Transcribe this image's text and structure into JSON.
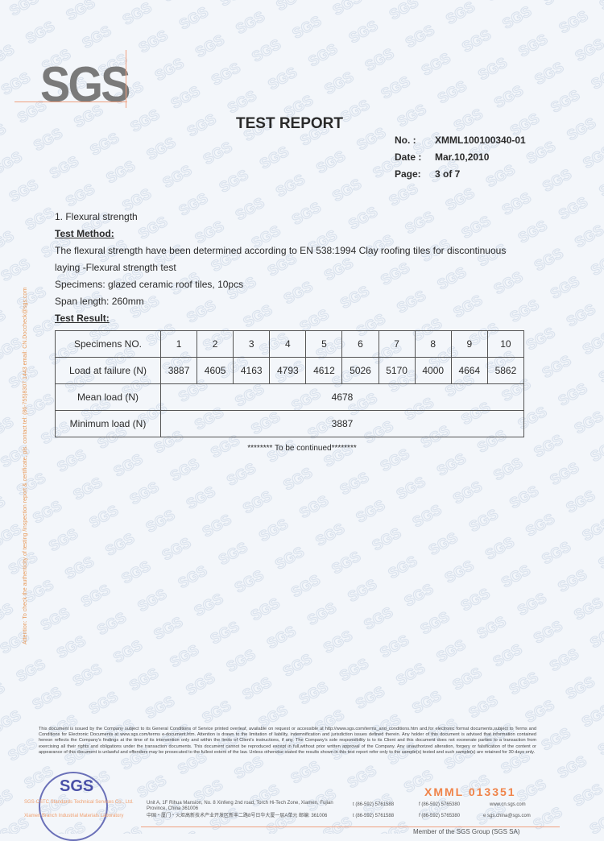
{
  "watermark": "SGS",
  "logo": "SGS",
  "header": {
    "title": "TEST REPORT",
    "no_label": "No.  :",
    "no": "XMML100100340-01",
    "date_label": "Date :",
    "date": "Mar.10,2010",
    "page_label": "Page:",
    "page": "3 of 7"
  },
  "section": {
    "heading": "1. Flexural strength",
    "method_label": "Test Method:",
    "method_line1": "The flexural strength have been determined according to EN 538:1994 Clay roofing tiles for discontinuous",
    "method_line2": "laying -Flexural strength test",
    "specimens": "Specimens: glazed ceramic roof tiles, 10pcs",
    "span": "Span length: 260mm",
    "result_label": "Test Result:"
  },
  "table": {
    "header_label": "Specimens NO.",
    "specimens": [
      "1",
      "2",
      "3",
      "4",
      "5",
      "6",
      "7",
      "8",
      "9",
      "10"
    ],
    "load_label": "Load at failure (N)",
    "loads": [
      "3887",
      "4605",
      "4163",
      "4793",
      "4612",
      "5026",
      "5170",
      "4000",
      "4664",
      "5862"
    ],
    "mean_label": "Mean load (N)",
    "mean": "4678",
    "min_label": "Minimum load (N)",
    "min": "3887"
  },
  "continued": "******** To be continued********",
  "side_note": "Attention: To check the authenticity of testing /inspection report & certificate, pls. contact tel: (86-755)8307 1443 email: CN.Doccheck@sgs.com",
  "footer": {
    "disclaimer": "This document is issued by the Company subject to its General Conditions of Service printed overleaf, available on request or accessible at http://www.sgs.com/terms_and_conditions.htm and,for electronic format documents,subject to Terms and Conditions for Electronic Documents at www.sgs.com/terms e-document.htm. Attention is drawn to the limitation of liability, indemnification and jurisdiction issues defined therein. Any holder of this document is advised that information contained hereon reflects the Company's findings at the time of its intervention only and within the limits of Client's instructions, if any. The Company's sole responsibility is to its Client and this document does not exonerate parties to a transaction from exercising all their rights and obligations under the transaction documents. This document cannot be reproduced except in full,without prior written approval of the Company. Any unauthorized alteration, forgery or falsification of the content or appearance of this document is unlawful and offenders may be prosecuted to the fullest extent of the law. Unless otherwise stated the results shown in this test report refer only to the sample(s) tested and such sample(s) are retained for 30 days only.",
    "stamp": "SGS",
    "serial": "XMML  013351",
    "company_en": "SGS-CSTC Standards Technical Services Co., Ltd.",
    "company_cn": "Xiamen Branch Industrial Materials Laboratory",
    "addr_en": "Unit A, 1F Rihua Mansion, No. 8 Xinfeng 2nd road, Torch Hi-Tech Zone, Xiamen, Fujian Province, China 361006",
    "addr_cn": "中国・厦门・火炬高新技术产业开发区新丰二路8号日华大厦一层A单元  邮编: 361006",
    "tel1": "t  (86-592) 5761588",
    "tel2": "t  (86-592) 5761588",
    "fax1": "f  (86-592) 5765380",
    "fax2": "f  (86-592) 5765380",
    "web": "www.cn.sgs.com",
    "email": "e  sgs.china@sgs.com",
    "member": "Member of the SGS Group (SGS SA)"
  },
  "colors": {
    "accent": "#f0844a",
    "stamp": "#4a50a8",
    "watermark": "#d6dfeb"
  }
}
